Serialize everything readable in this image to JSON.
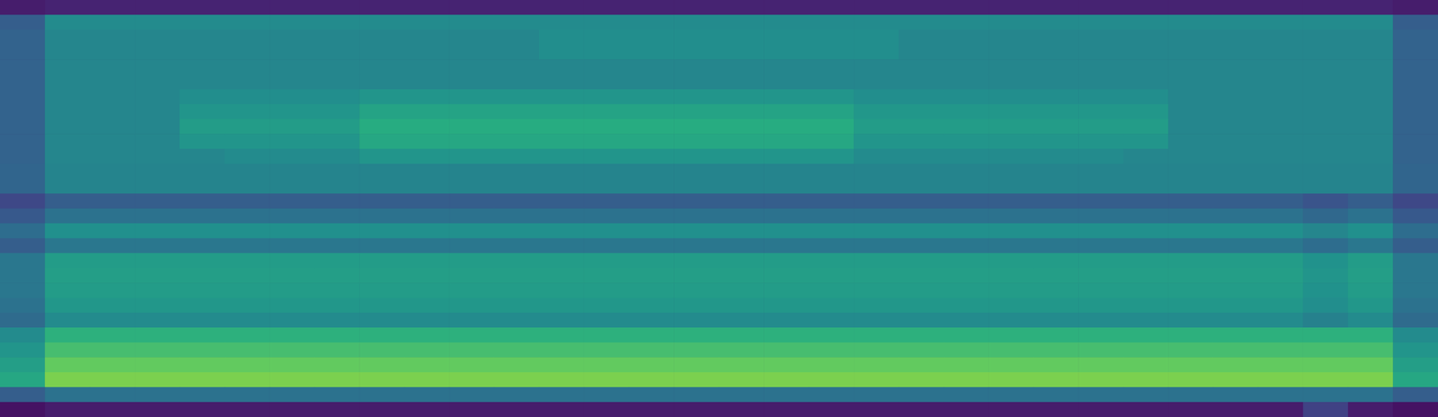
{
  "chart_data": {
    "type": "heatmap",
    "tick_labels": false,
    "zlim": [
      0,
      100
    ],
    "cells": [
      [
        8,
        10,
        10,
        10,
        10,
        10,
        10,
        10,
        10,
        10,
        10,
        10,
        10,
        10,
        10,
        10,
        10,
        10,
        10,
        10,
        10,
        10,
        10,
        10,
        10,
        10,
        10,
        10,
        10,
        10,
        10,
        8
      ],
      [
        30,
        48,
        48,
        48,
        48,
        48,
        48,
        48,
        48,
        48,
        48,
        48,
        48,
        48,
        48,
        48,
        48,
        48,
        48,
        48,
        48,
        48,
        48,
        48,
        48,
        48,
        48,
        48,
        48,
        48,
        48,
        30
      ],
      [
        32,
        46,
        46,
        46,
        46,
        46,
        46,
        46,
        46,
        46,
        46,
        46,
        49,
        49,
        49,
        49,
        49,
        49,
        49,
        49,
        46,
        46,
        46,
        46,
        46,
        46,
        46,
        46,
        46,
        46,
        46,
        32
      ],
      [
        32,
        46,
        46,
        46,
        46,
        46,
        46,
        46,
        46,
        46,
        46,
        46,
        49,
        49,
        49,
        49,
        49,
        49,
        49,
        49,
        46,
        46,
        46,
        46,
        46,
        46,
        46,
        46,
        46,
        46,
        46,
        32
      ],
      [
        32,
        46,
        46,
        46,
        46,
        46,
        46,
        46,
        46,
        46,
        46,
        46,
        46,
        46,
        46,
        46,
        46,
        46,
        46,
        46,
        46,
        46,
        46,
        46,
        46,
        46,
        46,
        46,
        46,
        46,
        46,
        32
      ],
      [
        32,
        46,
        46,
        46,
        46,
        46,
        46,
        46,
        46,
        46,
        46,
        46,
        46,
        46,
        46,
        46,
        46,
        46,
        46,
        46,
        46,
        46,
        46,
        46,
        46,
        46,
        46,
        46,
        46,
        46,
        46,
        32
      ],
      [
        32,
        46,
        46,
        46,
        49,
        49,
        49,
        49,
        52,
        52,
        52,
        52,
        52,
        52,
        52,
        52,
        52,
        52,
        52,
        49,
        49,
        49,
        49,
        49,
        49,
        49,
        46,
        46,
        46,
        46,
        46,
        32
      ],
      [
        32,
        46,
        46,
        46,
        52,
        52,
        52,
        52,
        58,
        58,
        58,
        58,
        58,
        58,
        58,
        58,
        58,
        58,
        58,
        53,
        53,
        53,
        53,
        53,
        53,
        53,
        46,
        46,
        46,
        46,
        46,
        32
      ],
      [
        32,
        46,
        46,
        46,
        55,
        55,
        55,
        55,
        62,
        62,
        62,
        62,
        62,
        62,
        62,
        62,
        62,
        62,
        62,
        55,
        55,
        55,
        55,
        55,
        55,
        55,
        46,
        46,
        46,
        46,
        46,
        32
      ],
      [
        32,
        46,
        46,
        46,
        52,
        52,
        52,
        52,
        60,
        60,
        60,
        60,
        60,
        60,
        60,
        60,
        60,
        60,
        60,
        52,
        52,
        52,
        52,
        52,
        52,
        52,
        46,
        46,
        46,
        46,
        46,
        32
      ],
      [
        32,
        46,
        46,
        46,
        46,
        48,
        48,
        48,
        52,
        52,
        52,
        52,
        52,
        52,
        52,
        52,
        52,
        52,
        52,
        48,
        48,
        48,
        48,
        48,
        48,
        46,
        46,
        46,
        46,
        46,
        46,
        32
      ],
      [
        33,
        45,
        45,
        45,
        45,
        45,
        45,
        45,
        45,
        45,
        45,
        45,
        45,
        45,
        45,
        45,
        45,
        45,
        45,
        45,
        45,
        45,
        45,
        45,
        45,
        45,
        45,
        45,
        45,
        45,
        45,
        33
      ],
      [
        33,
        45,
        45,
        45,
        45,
        45,
        45,
        45,
        45,
        45,
        45,
        45,
        45,
        45,
        45,
        45,
        45,
        45,
        45,
        45,
        45,
        45,
        45,
        45,
        45,
        45,
        45,
        45,
        45,
        45,
        45,
        33
      ],
      [
        22,
        30,
        30,
        30,
        30,
        30,
        30,
        30,
        30,
        30,
        30,
        30,
        30,
        30,
        30,
        30,
        30,
        30,
        30,
        30,
        30,
        30,
        30,
        30,
        30,
        30,
        30,
        30,
        30,
        26,
        30,
        22
      ],
      [
        28,
        38,
        38,
        38,
        38,
        38,
        38,
        38,
        38,
        38,
        38,
        38,
        38,
        38,
        38,
        38,
        38,
        38,
        38,
        38,
        38,
        38,
        38,
        38,
        38,
        38,
        38,
        38,
        38,
        34,
        38,
        28
      ],
      [
        36,
        50,
        50,
        50,
        50,
        50,
        50,
        50,
        50,
        50,
        50,
        50,
        50,
        50,
        50,
        50,
        50,
        50,
        50,
        50,
        50,
        50,
        50,
        50,
        50,
        50,
        50,
        50,
        50,
        46,
        50,
        36
      ],
      [
        30,
        40,
        40,
        40,
        40,
        40,
        40,
        40,
        40,
        40,
        40,
        40,
        40,
        40,
        40,
        40,
        40,
        40,
        40,
        40,
        40,
        40,
        40,
        40,
        40,
        40,
        40,
        40,
        40,
        36,
        40,
        30
      ],
      [
        40,
        55,
        55,
        55,
        55,
        55,
        55,
        55,
        55,
        55,
        55,
        55,
        55,
        55,
        55,
        55,
        55,
        55,
        55,
        55,
        55,
        55,
        55,
        55,
        55,
        55,
        55,
        55,
        55,
        51,
        55,
        40
      ],
      [
        40,
        56,
        56,
        56,
        56,
        56,
        56,
        56,
        56,
        56,
        56,
        56,
        56,
        56,
        56,
        56,
        56,
        56,
        56,
        56,
        56,
        56,
        56,
        56,
        56,
        56,
        56,
        56,
        56,
        52,
        56,
        40
      ],
      [
        40,
        55,
        55,
        55,
        55,
        55,
        55,
        55,
        55,
        55,
        55,
        55,
        55,
        55,
        55,
        55,
        55,
        55,
        55,
        55,
        55,
        55,
        55,
        55,
        55,
        55,
        55,
        55,
        55,
        51,
        55,
        40
      ],
      [
        38,
        53,
        53,
        53,
        53,
        53,
        53,
        53,
        53,
        53,
        53,
        53,
        53,
        53,
        53,
        53,
        53,
        53,
        53,
        53,
        53,
        53,
        53,
        53,
        53,
        53,
        53,
        53,
        53,
        49,
        53,
        38
      ],
      [
        35,
        48,
        48,
        48,
        48,
        48,
        48,
        48,
        48,
        48,
        48,
        48,
        48,
        48,
        48,
        48,
        48,
        48,
        48,
        48,
        48,
        48,
        48,
        48,
        48,
        48,
        48,
        48,
        48,
        44,
        48,
        35
      ],
      [
        48,
        64,
        64,
        64,
        64,
        64,
        64,
        64,
        64,
        64,
        64,
        64,
        64,
        64,
        64,
        64,
        64,
        64,
        64,
        64,
        64,
        64,
        64,
        64,
        64,
        64,
        64,
        64,
        64,
        64,
        64,
        48
      ],
      [
        52,
        70,
        70,
        70,
        70,
        70,
        70,
        70,
        70,
        70,
        70,
        70,
        70,
        70,
        70,
        70,
        70,
        70,
        70,
        70,
        70,
        70,
        70,
        70,
        70,
        70,
        70,
        70,
        70,
        70,
        70,
        52
      ],
      [
        56,
        76,
        76,
        76,
        76,
        76,
        76,
        76,
        76,
        76,
        76,
        76,
        76,
        76,
        76,
        76,
        76,
        76,
        76,
        76,
        76,
        76,
        76,
        76,
        76,
        76,
        76,
        76,
        76,
        76,
        76,
        56
      ],
      [
        60,
        80,
        80,
        80,
        80,
        80,
        80,
        80,
        80,
        80,
        80,
        80,
        80,
        80,
        80,
        80,
        80,
        80,
        80,
        80,
        80,
        80,
        80,
        80,
        80,
        80,
        80,
        80,
        80,
        80,
        80,
        60
      ],
      [
        30,
        38,
        38,
        38,
        38,
        38,
        38,
        38,
        38,
        38,
        38,
        38,
        38,
        38,
        38,
        38,
        38,
        38,
        38,
        38,
        38,
        38,
        38,
        38,
        38,
        38,
        38,
        38,
        38,
        38,
        38,
        30
      ],
      [
        5,
        8,
        8,
        8,
        8,
        8,
        8,
        8,
        8,
        8,
        8,
        8,
        8,
        8,
        8,
        8,
        8,
        8,
        8,
        8,
        8,
        8,
        8,
        8,
        8,
        8,
        8,
        8,
        8,
        20,
        8,
        5
      ]
    ]
  }
}
